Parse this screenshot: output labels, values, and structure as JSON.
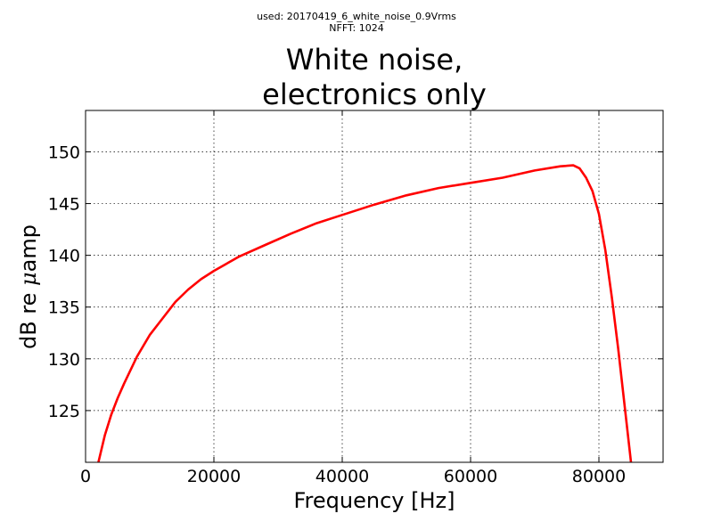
{
  "header": {
    "source_line": "used: 20170419_6_white_noise_0.9Vrms",
    "nfft_line": "NFFT: 1024"
  },
  "chart_data": {
    "type": "line",
    "title_lines": [
      "White noise,",
      "electronics only"
    ],
    "xlabel": "Frequency [Hz]",
    "ylabel_prefix": "dB re ",
    "ylabel_mu": "μ",
    "ylabel_suffix": "amp",
    "xlim": [
      0,
      90000
    ],
    "ylim": [
      120,
      154
    ],
    "xticks": [
      0,
      20000,
      40000,
      60000,
      80000
    ],
    "yticks": [
      125,
      130,
      135,
      140,
      145,
      150
    ],
    "grid": true,
    "series": [
      {
        "color": "#ff0000",
        "x": [
          2000,
          3000,
          4000,
          5000,
          6000,
          8000,
          10000,
          12000,
          14000,
          16000,
          18000,
          20000,
          24000,
          28000,
          32000,
          36000,
          40000,
          45000,
          50000,
          55000,
          60000,
          65000,
          70000,
          74000,
          76000,
          77000,
          78000,
          79000,
          80000,
          81000,
          82000,
          83000,
          84000,
          85000
        ],
        "y": [
          120,
          122.6,
          124.6,
          126.2,
          127.6,
          130.2,
          132.3,
          133.9,
          135.5,
          136.7,
          137.7,
          138.5,
          139.9,
          141.0,
          142.1,
          143.1,
          143.9,
          144.9,
          145.8,
          146.5,
          147.0,
          147.5,
          148.2,
          148.6,
          148.7,
          148.4,
          147.5,
          146.2,
          144.0,
          140.5,
          136.0,
          131.0,
          125.5,
          120
        ]
      }
    ]
  }
}
